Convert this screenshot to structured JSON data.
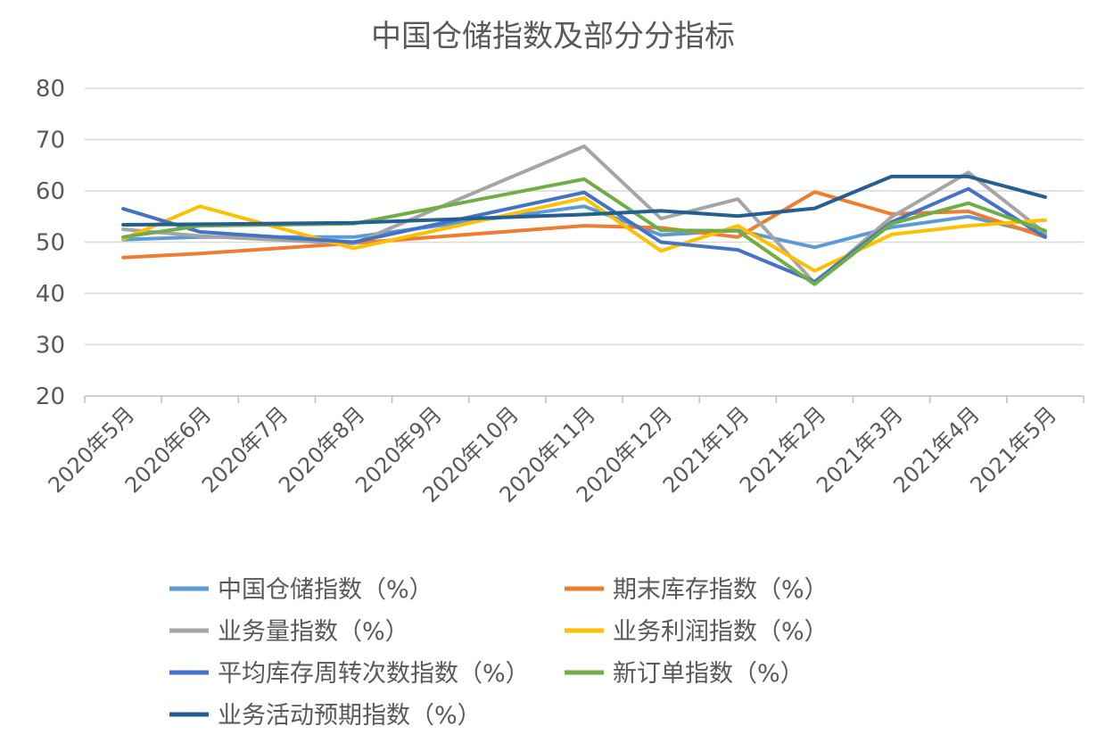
{
  "chart_data": {
    "type": "line",
    "title": "中国仓储指数及部分分指标",
    "xlabel": "",
    "ylabel": "",
    "ylim": [
      20,
      80
    ],
    "yticks": [
      20,
      30,
      40,
      50,
      60,
      70,
      80
    ],
    "grid": true,
    "legend_position": "bottom",
    "categories": [
      "2020年5月",
      "2020年6月",
      "2020年7月",
      "2020年8月",
      "2020年9月",
      "2020年10月",
      "2020年11月",
      "2020年12月",
      "2021年1月",
      "2021年2月",
      "2021年3月",
      "2021年4月",
      "2021年5月"
    ],
    "series": [
      {
        "name": "中国仓储指数（%）",
        "color": "#5b9bd5",
        "values": [
          50.5,
          51.0,
          null,
          51.0,
          null,
          null,
          57.0,
          51.4,
          52.3,
          49.0,
          52.9,
          55.0,
          51.5
        ]
      },
      {
        "name": "期末库存指数（%）",
        "color": "#ed7d31",
        "values": [
          47.0,
          47.8,
          null,
          49.8,
          null,
          null,
          53.2,
          52.8,
          51.0,
          59.8,
          55.5,
          56.0,
          51.0
        ]
      },
      {
        "name": "业务量指数（%）",
        "color": "#a5a5a5",
        "values": [
          52.5,
          51.2,
          null,
          49.7,
          null,
          null,
          68.7,
          54.6,
          58.4,
          42.0,
          54.9,
          63.6,
          51.8
        ]
      },
      {
        "name": "业务利润指数（%）",
        "color": "#ffc000",
        "values": [
          50.6,
          57.0,
          null,
          48.8,
          null,
          null,
          58.6,
          48.3,
          53.2,
          44.4,
          51.5,
          53.2,
          54.3
        ]
      },
      {
        "name": "平均库存周转次数指数（%）",
        "color": "#4472c4",
        "values": [
          56.5,
          52.0,
          null,
          50.0,
          null,
          null,
          59.7,
          50.0,
          48.5,
          42.3,
          53.9,
          60.4,
          51.0
        ]
      },
      {
        "name": "新订单指数（%）",
        "color": "#70ad47",
        "values": [
          51.0,
          53.2,
          null,
          53.6,
          null,
          null,
          62.3,
          52.3,
          52.2,
          41.8,
          53.6,
          57.6,
          52.2
        ]
      },
      {
        "name": "业务活动预期指数（%）",
        "color": "#255e91",
        "values": [
          53.4,
          53.5,
          null,
          53.8,
          null,
          null,
          55.4,
          56.1,
          55.1,
          56.6,
          62.8,
          62.8,
          58.8
        ]
      }
    ]
  }
}
